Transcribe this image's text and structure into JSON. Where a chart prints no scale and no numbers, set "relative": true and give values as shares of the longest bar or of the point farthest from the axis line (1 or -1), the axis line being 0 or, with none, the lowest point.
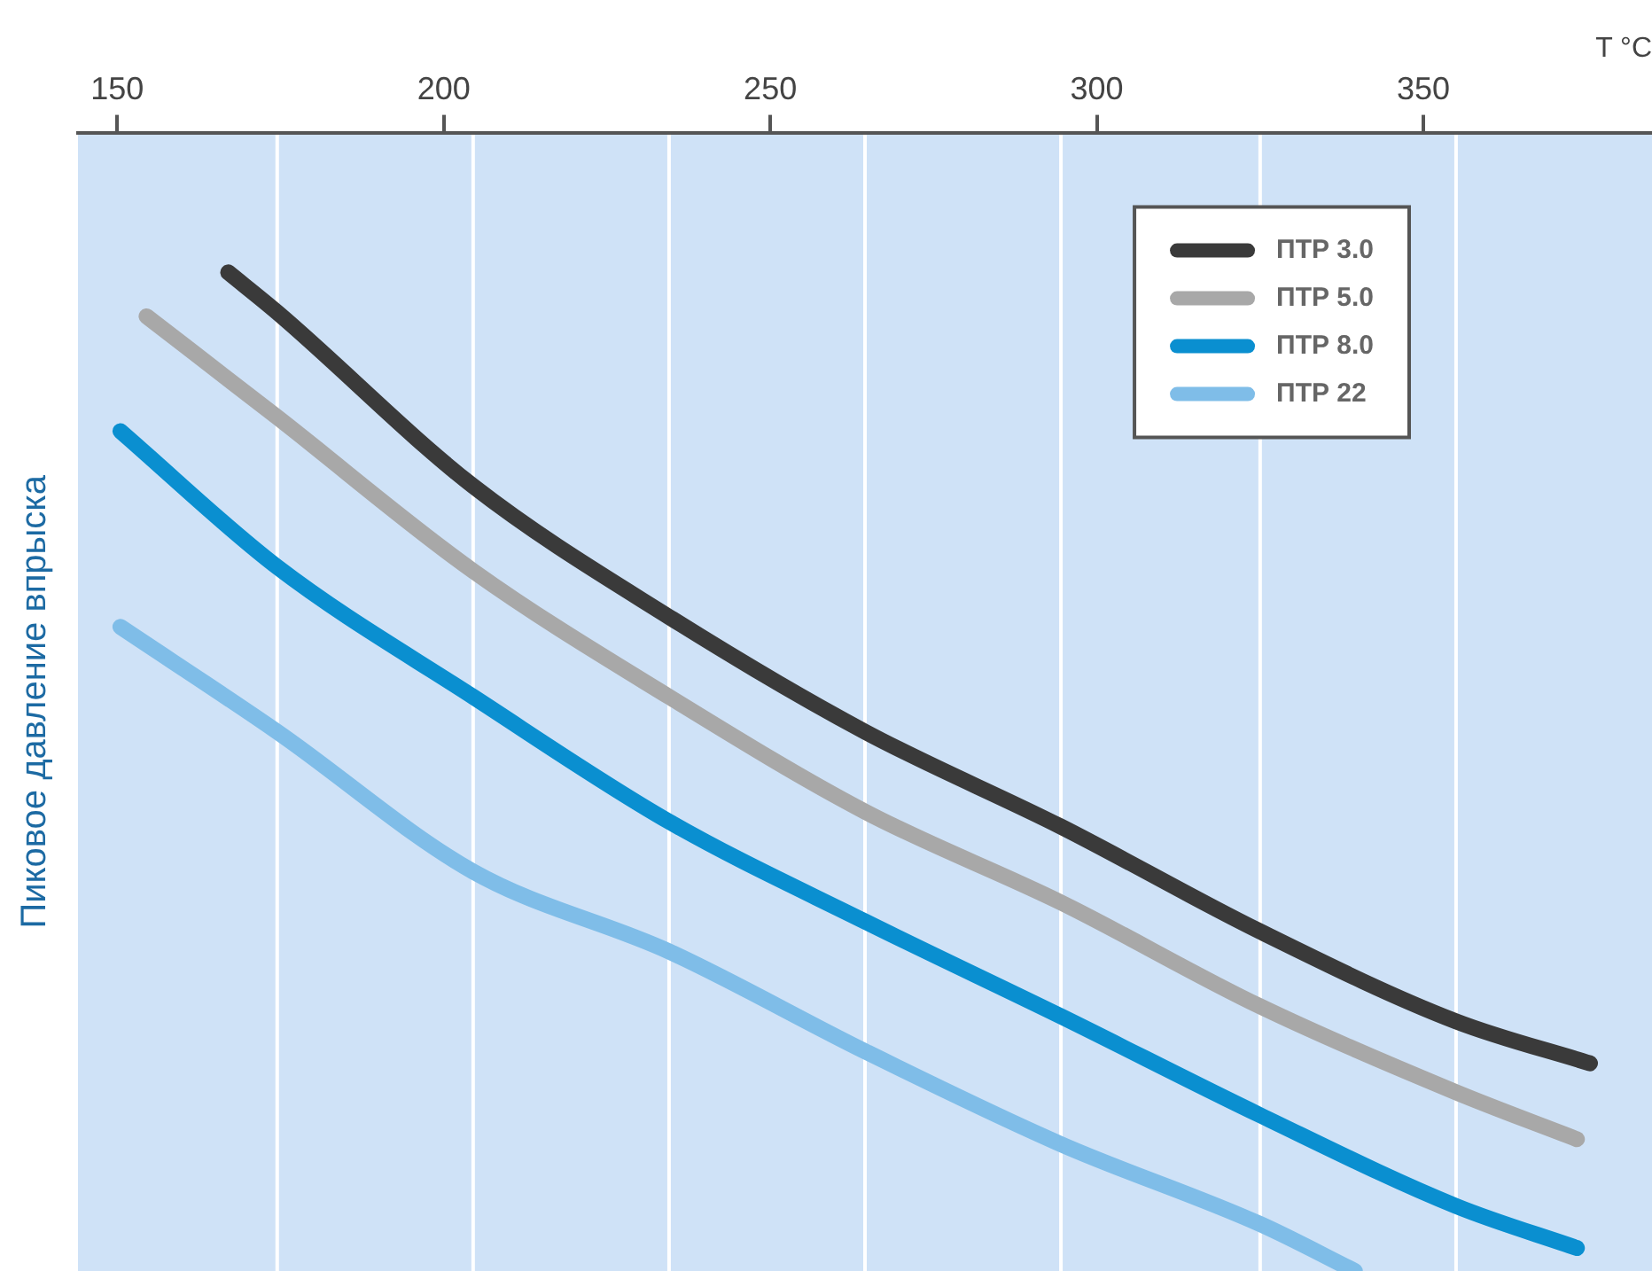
{
  "chart_data": {
    "type": "line",
    "relative": true,
    "xlabel": "T °C",
    "ylabel": "Пиковое давление впрыска",
    "xlim": [
      144,
      385
    ],
    "xticks": [
      150,
      200,
      250,
      300,
      350
    ],
    "grid": false,
    "legend": "top right",
    "marker": "none",
    "line_style": "solid",
    "ref_lines": [
      {
        "axis": "x",
        "value": 174.5,
        "color": "#ffffff"
      },
      {
        "axis": "x",
        "value": 204.5,
        "color": "#ffffff"
      },
      {
        "axis": "x",
        "value": 234.5,
        "color": "#ffffff"
      },
      {
        "axis": "x",
        "value": 264.5,
        "color": "#ffffff"
      },
      {
        "axis": "x",
        "value": 294.5,
        "color": "#ffffff"
      },
      {
        "axis": "x",
        "value": 325,
        "color": "#ffffff"
      },
      {
        "axis": "x",
        "value": 355,
        "color": "#ffffff"
      }
    ],
    "series": [
      {
        "name": "ПТР 3.0",
        "color": "#3a3a3a",
        "x": [
          167,
          174.5,
          204.5,
          234.5,
          264.5,
          294.5,
          325,
          355,
          375.5
        ],
        "values": [
          1,
          0.96,
          0.786,
          0.655,
          0.54,
          0.445,
          0.34,
          0.25,
          0.208
        ]
      },
      {
        "name": "ПТР 5.0",
        "color": "#a8a8a8",
        "x": [
          154.5,
          174.5,
          204.5,
          234.5,
          264.5,
          294.5,
          325,
          355,
          373.5
        ],
        "values": [
          0.956,
          0.855,
          0.701,
          0.575,
          0.46,
          0.369,
          0.265,
          0.179,
          0.132
        ]
      },
      {
        "name": "ПТР 8.0",
        "color": "#0a8fd0",
        "x": [
          150.5,
          174.5,
          204.5,
          234.5,
          264.5,
          294.5,
          325,
          355,
          373.5
        ],
        "values": [
          0.841,
          0.705,
          0.575,
          0.45,
          0.35,
          0.255,
          0.156,
          0.065,
          0.023
        ]
      },
      {
        "name": "ПТР 22",
        "color": "#7fbde8",
        "x": [
          150.5,
          174.5,
          204.5,
          234.5,
          264.5,
          294.5,
          325,
          339.5
        ],
        "values": [
          0.645,
          0.54,
          0.4,
          0.32,
          0.22,
          0.127,
          0.047,
          0
        ]
      }
    ]
  }
}
